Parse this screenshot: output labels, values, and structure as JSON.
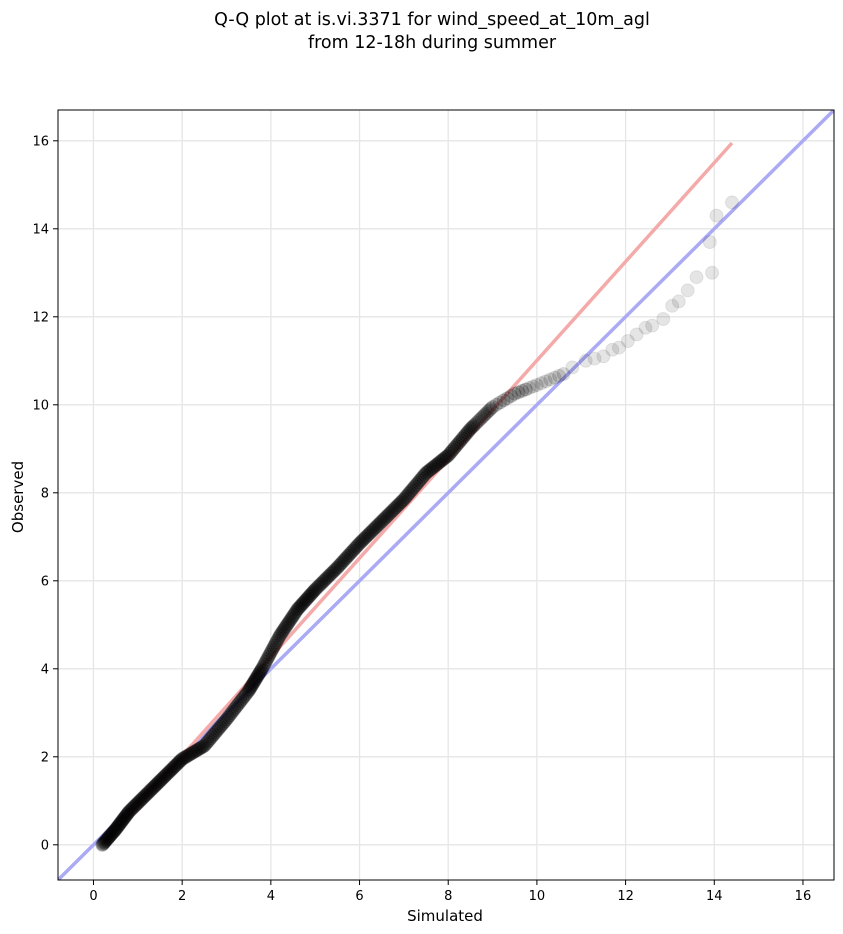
{
  "chart_data": {
    "type": "scatter",
    "title_line1": "Q-Q plot at is.vi.3371 for wind_speed_at_10m_agl",
    "title_line2": "from 12-18h during summer",
    "xlabel": "Simulated",
    "ylabel": "Observed",
    "xlim": [
      -0.8,
      16.7
    ],
    "ylim": [
      -0.8,
      16.7
    ],
    "xticks": [
      "0",
      "2",
      "4",
      "6",
      "8",
      "10",
      "12",
      "14",
      "16"
    ],
    "yticks": [
      "0",
      "2",
      "4",
      "6",
      "8",
      "10",
      "12",
      "14",
      "16"
    ],
    "grid": true,
    "colors": {
      "points": "#000000",
      "identity_line": "#aaaaf5",
      "fit_line": "#f5aaaa"
    },
    "identity_line": {
      "x": [
        -0.8,
        16.7
      ],
      "y": [
        -0.8,
        16.7
      ]
    },
    "fit_line": {
      "x": [
        0.2,
        14.4
      ],
      "y": [
        0.0,
        15.95
      ]
    },
    "quantile_curve": {
      "x": [
        0.2,
        0.5,
        0.8,
        1.2,
        1.6,
        2.0,
        2.5,
        3.0,
        3.5,
        3.8,
        4.2,
        4.6,
        5.0,
        5.5,
        6.0,
        6.5,
        7.0,
        7.5,
        8.0,
        8.5,
        9.0,
        9.5,
        10.0,
        10.6
      ],
      "y": [
        0.0,
        0.35,
        0.75,
        1.15,
        1.55,
        1.95,
        2.25,
        2.85,
        3.5,
        4.0,
        4.75,
        5.35,
        5.8,
        6.3,
        6.85,
        7.35,
        7.85,
        8.45,
        8.85,
        9.45,
        9.95,
        10.25,
        10.45,
        10.7
      ]
    },
    "tail_points": {
      "x": [
        10.8,
        11.1,
        11.3,
        11.5,
        11.7,
        11.85,
        12.05,
        12.25,
        12.45,
        12.6,
        12.85,
        13.05,
        13.2,
        13.4,
        13.6,
        13.95,
        13.9,
        14.05,
        14.4
      ],
      "y": [
        10.85,
        11.0,
        11.05,
        11.1,
        11.25,
        11.3,
        11.45,
        11.6,
        11.75,
        11.8,
        11.95,
        12.25,
        12.35,
        12.6,
        12.9,
        13.0,
        13.7,
        14.3,
        14.6
      ]
    }
  }
}
